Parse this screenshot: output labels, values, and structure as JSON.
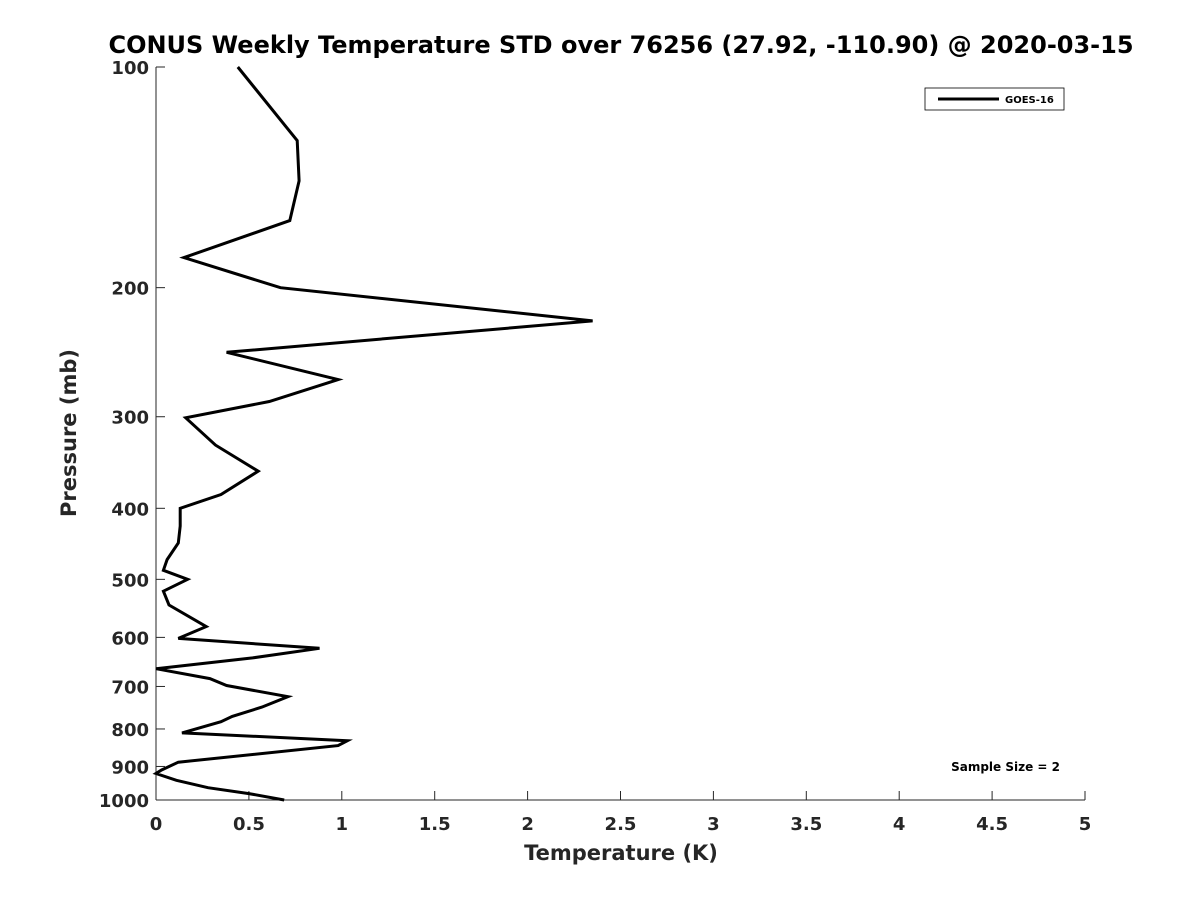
{
  "chart_data": {
    "type": "line",
    "title": "CONUS Weekly Temperature STD over 76256 (27.92, -110.90) @ 2020-03-15",
    "xlabel": "Temperature (K)",
    "ylabel": "Pressure (mb)",
    "xlim": [
      0,
      5
    ],
    "ylim": [
      100,
      1000
    ],
    "y_scale": "log",
    "y_reversed": true,
    "x_ticks": [
      "0",
      "0.5",
      "1",
      "1.5",
      "2",
      "2.5",
      "3",
      "3.5",
      "4",
      "4.5",
      "5"
    ],
    "x_tick_values": [
      0,
      0.5,
      1,
      1.5,
      2,
      2.5,
      3,
      3.5,
      4,
      4.5,
      5
    ],
    "y_ticks": [
      "100",
      "200",
      "300",
      "400",
      "500",
      "600",
      "700",
      "800",
      "900",
      "1000"
    ],
    "y_tick_values": [
      100,
      200,
      300,
      400,
      500,
      600,
      700,
      800,
      900,
      1000
    ],
    "grid": false,
    "legend_position": "top-right",
    "annotation": "Sample Size = 2",
    "series": [
      {
        "name": "GOES-16",
        "color": "#000000",
        "points": [
          [
            0.44,
            100
          ],
          [
            0.76,
            126
          ],
          [
            0.77,
            143
          ],
          [
            0.72,
            162
          ],
          [
            0.15,
            182
          ],
          [
            0.67,
            200
          ],
          [
            2.35,
            222
          ],
          [
            0.38,
            245
          ],
          [
            0.98,
            267
          ],
          [
            0.61,
            286
          ],
          [
            0.16,
            301
          ],
          [
            0.32,
            328
          ],
          [
            0.55,
            356
          ],
          [
            0.35,
            383
          ],
          [
            0.13,
            400
          ],
          [
            0.13,
            423
          ],
          [
            0.12,
            446
          ],
          [
            0.06,
            470
          ],
          [
            0.04,
            486
          ],
          [
            0.17,
            500
          ],
          [
            0.04,
            519
          ],
          [
            0.07,
            542
          ],
          [
            0.27,
            580
          ],
          [
            0.12,
            602
          ],
          [
            0.88,
            621
          ],
          [
            0.52,
            640
          ],
          [
            0.0,
            662
          ],
          [
            0.29,
            683
          ],
          [
            0.38,
            698
          ],
          [
            0.71,
            723
          ],
          [
            0.57,
            747
          ],
          [
            0.41,
            769
          ],
          [
            0.35,
            782
          ],
          [
            0.14,
            810
          ],
          [
            1.03,
            830
          ],
          [
            0.98,
            843
          ],
          [
            0.12,
            888
          ],
          [
            0.03,
            910
          ],
          [
            0.0,
            920
          ],
          [
            0.11,
            940
          ],
          [
            0.28,
            962
          ],
          [
            0.5,
            980
          ],
          [
            0.69,
            1000
          ]
        ]
      }
    ]
  }
}
